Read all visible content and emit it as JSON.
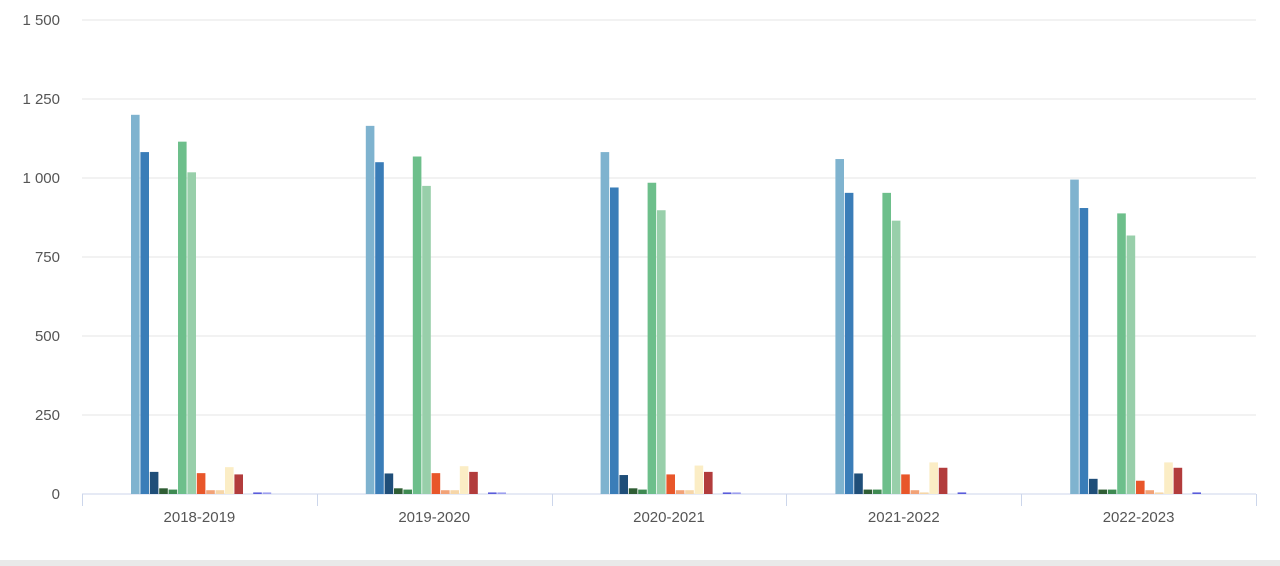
{
  "chart_data": {
    "type": "bar",
    "title": "",
    "xlabel": "",
    "ylabel": "",
    "ylim": [
      0,
      1500
    ],
    "yticks": [
      {
        "value": 0,
        "label": "0"
      },
      {
        "value": 250,
        "label": "250"
      },
      {
        "value": 500,
        "label": "500"
      },
      {
        "value": 750,
        "label": "750"
      },
      {
        "value": 1000,
        "label": "1 000"
      },
      {
        "value": 1250,
        "label": "1 250"
      },
      {
        "value": 1500,
        "label": "1 500"
      }
    ],
    "grid": true,
    "legend": "none",
    "categories": [
      "2018-2019",
      "2019-2020",
      "2020-2021",
      "2021-2022",
      "2022-2023"
    ],
    "series": [
      {
        "color": "#7fb3cf",
        "values": [
          1200,
          1165,
          1082,
          1060,
          995
        ]
      },
      {
        "color": "#3a7db8",
        "values": [
          1082,
          1050,
          970,
          953,
          905
        ]
      },
      {
        "color": "#1f4e79",
        "values": [
          70,
          65,
          60,
          65,
          48
        ]
      },
      {
        "color": "#2f5d34",
        "values": [
          18,
          18,
          18,
          14,
          14
        ]
      },
      {
        "color": "#3e8a52",
        "values": [
          14,
          14,
          14,
          14,
          14
        ]
      },
      {
        "color": "#6dbf8b",
        "values": [
          1115,
          1068,
          985,
          953,
          888
        ]
      },
      {
        "color": "#98cfaa",
        "values": [
          1018,
          975,
          898,
          865,
          818
        ]
      },
      {
        "color": "#e8562a",
        "values": [
          66,
          66,
          62,
          62,
          42
        ]
      },
      {
        "color": "#f2a277",
        "values": [
          12,
          12,
          12,
          12,
          12
        ]
      },
      {
        "color": "#f6d6a8",
        "values": [
          12,
          12,
          12,
          5,
          5
        ]
      },
      {
        "color": "#fbedc5",
        "values": [
          85,
          88,
          90,
          100,
          100
        ]
      },
      {
        "color": "#b23c3c",
        "values": [
          62,
          70,
          70,
          83,
          83
        ]
      },
      {
        "color": "#ffffff",
        "values": [
          0,
          0,
          0,
          0,
          0
        ]
      },
      {
        "color": "#5a5cdb",
        "values": [
          5,
          5,
          5,
          5,
          5
        ]
      },
      {
        "color": "#9d9fee",
        "values": [
          5,
          5,
          5,
          0,
          0
        ]
      }
    ]
  }
}
